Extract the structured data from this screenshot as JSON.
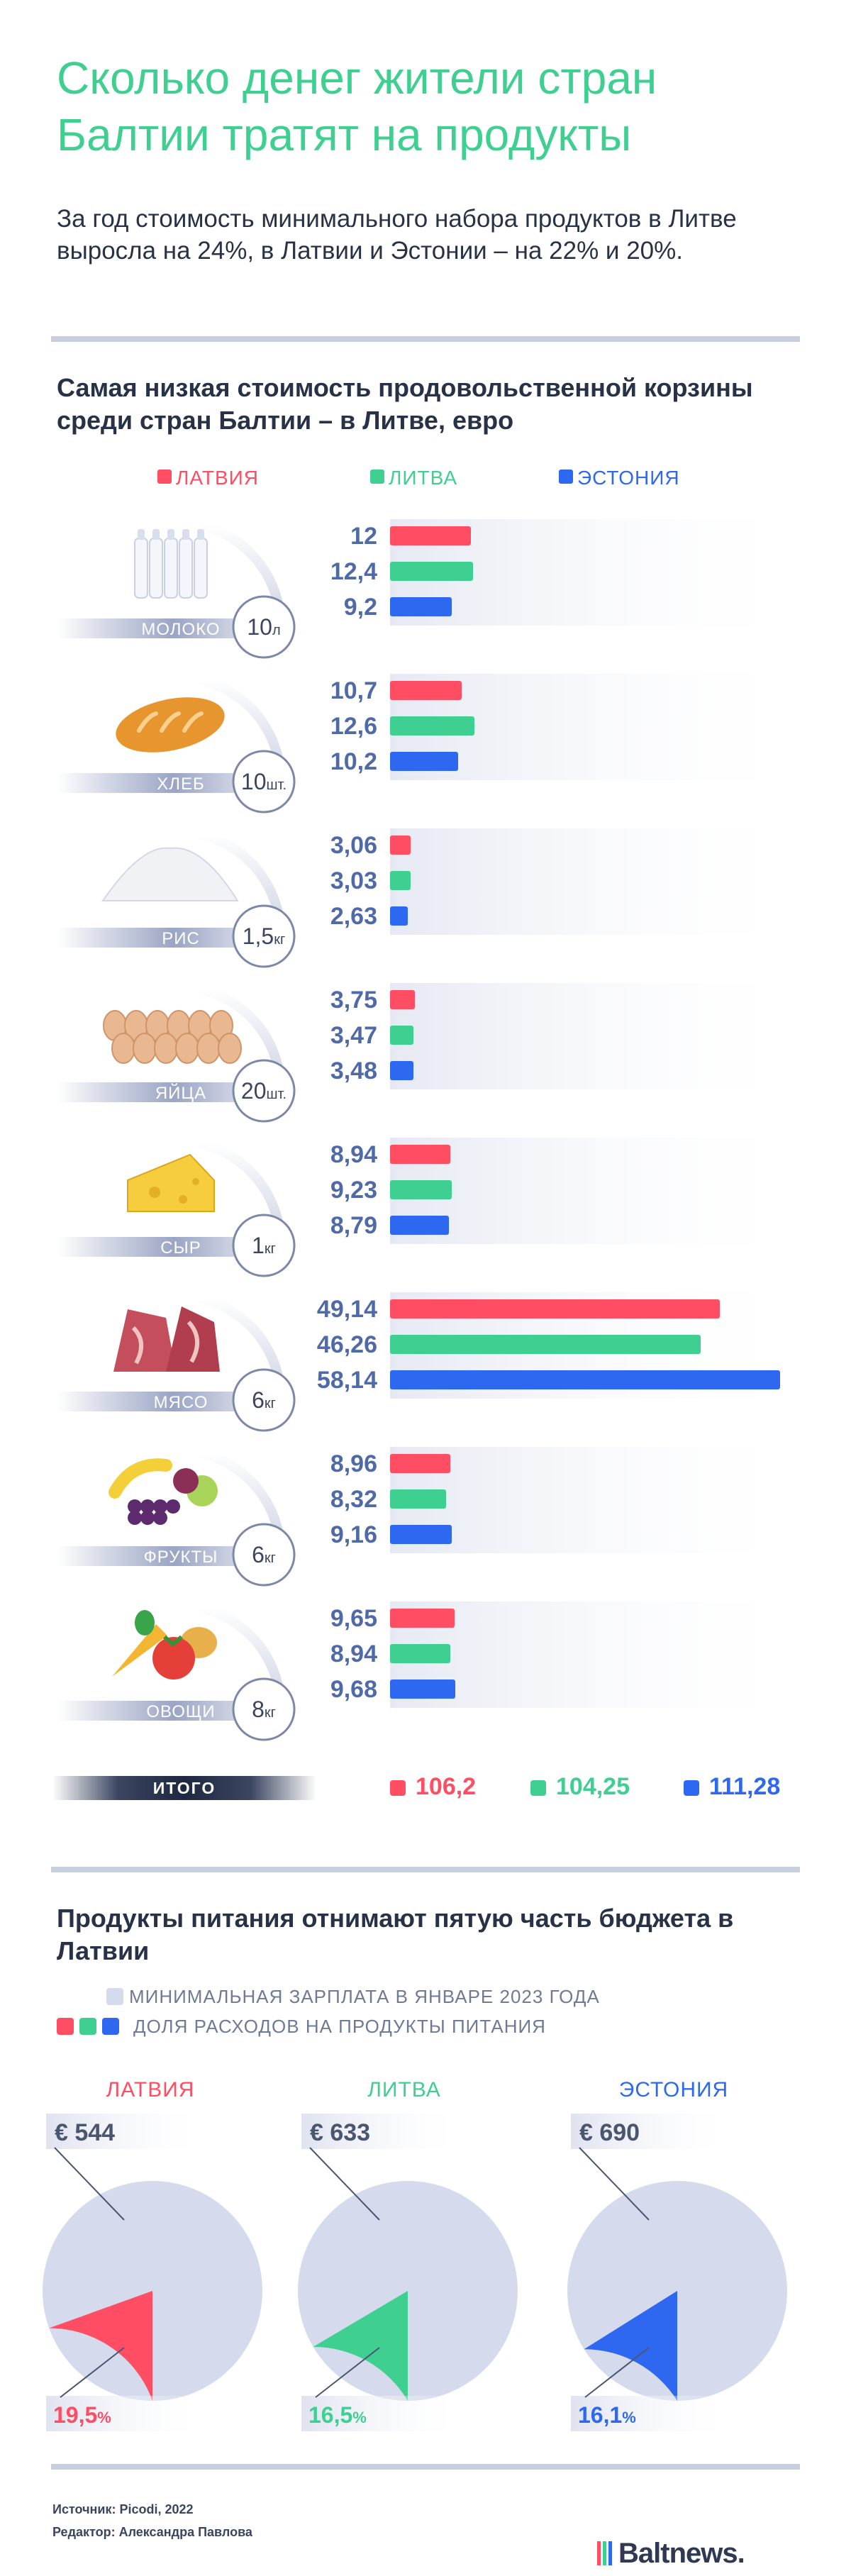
{
  "header": {
    "title": "Сколько денег жители стран Балтии тратят на продукты",
    "subtitle": "За год стоимость минимального набора продуктов в Литве выросла на 24%, в Латвии и Эстонии – на 22% и 20%."
  },
  "colors": {
    "latvia": "#ff4d63",
    "lithuania": "#3ecf91",
    "estonia": "#2f68f0"
  },
  "section1": {
    "title": "Самая низкая стоимость продовольственной корзины среди стран Балтии – в Литве, евро"
  },
  "legend": [
    "ЛАТВИЯ",
    "ЛИТВА",
    "ЭСТОНИЯ"
  ],
  "chart_data": {
    "type": "bar",
    "orientation": "horizontal",
    "title": "Самая низкая стоимость продовольственной корзины среди стран Балтии – в Литве, евро",
    "categories": [
      "МОЛОКО",
      "ХЛЕБ",
      "РИС",
      "ЯЙЦА",
      "СЫР",
      "МЯСО",
      "ФРУКТЫ",
      "ОВОЩИ"
    ],
    "quantities": [
      "10л",
      "10шт.",
      "1,5кг",
      "20шт.",
      "1кг",
      "6кг",
      "6кг",
      "8кг"
    ],
    "series": [
      {
        "name": "ЛАТВИЯ",
        "values": [
          12,
          10.7,
          3.06,
          3.75,
          8.94,
          49.14,
          8.96,
          9.65
        ],
        "labels": [
          "12",
          "10,7",
          "3,06",
          "3,75",
          "8,94",
          "49,14",
          "8,96",
          "9,65"
        ]
      },
      {
        "name": "ЛИТВА",
        "values": [
          12.4,
          12.6,
          3.03,
          3.47,
          9.23,
          46.26,
          8.32,
          8.94
        ],
        "labels": [
          "12,4",
          "12,6",
          "3,03",
          "3,47",
          "9,23",
          "46,26",
          "8,32",
          "8,94"
        ]
      },
      {
        "name": "ЭСТОНИЯ",
        "values": [
          9.2,
          10.2,
          2.63,
          3.48,
          8.79,
          58.14,
          9.16,
          9.68
        ],
        "labels": [
          "9,2",
          "10,2",
          "2,63",
          "3,48",
          "8,79",
          "58,14",
          "9,16",
          "9,68"
        ]
      }
    ],
    "xlim": [
      0,
      58.14
    ],
    "legend_position": "top",
    "grid": false
  },
  "totals": {
    "label": "ИТОГО",
    "latvia": "106,2",
    "lithuania": "104,25",
    "estonia": "111,28"
  },
  "section2": {
    "title": "Продукты питания отнимают пятую часть бюджета в Латвии",
    "legend_salary": "МИНИМАЛЬНАЯ ЗАРПЛАТА В ЯНВАРЕ 2023 ГОДА",
    "legend_food": "ДОЛЯ РАСХОДОВ НА ПРОДУКТЫ ПИТАНИЯ"
  },
  "pies": [
    {
      "country": "ЛАТВИЯ",
      "salary": "€ 544",
      "share": 19.5,
      "share_num": "19,5",
      "unit": "%"
    },
    {
      "country": "ЛИТВА",
      "salary": "€ 633",
      "share": 16.5,
      "share_num": "16,5",
      "unit": "%"
    },
    {
      "country": "ЭСТОНИЯ",
      "salary": "€ 690",
      "share": 16.1,
      "share_num": "16,1",
      "unit": "%"
    }
  ],
  "footer": {
    "source": "Источник: Picodi, 2022",
    "editor": "Редактор: Александра Павлова",
    "logo": "Baltnews."
  },
  "icons": [
    "milk-bottles-icon",
    "bread-icon",
    "rice-icon",
    "eggs-icon",
    "cheese-icon",
    "meat-icon",
    "fruits-icon",
    "vegetables-icon"
  ]
}
